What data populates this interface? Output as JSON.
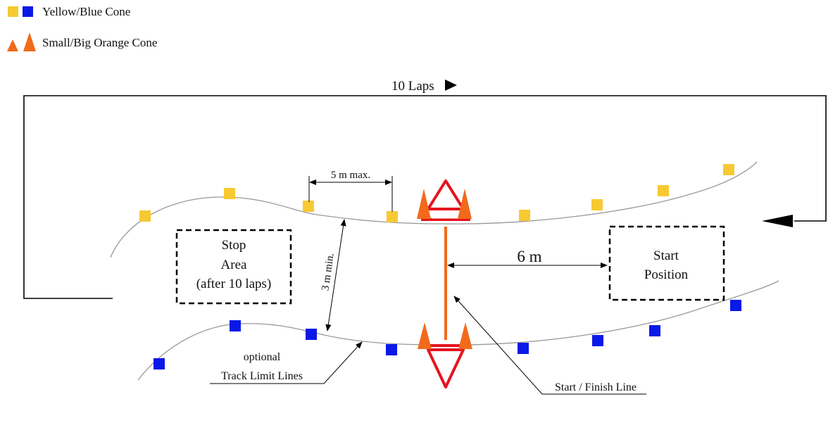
{
  "legend": {
    "yellow_blue": "Yellow/Blue Cone",
    "small_big_orange": "Small/Big Orange Cone"
  },
  "laps_label": "10 Laps",
  "dim_5m": "5 m max.",
  "dim_3m": "3 m min.",
  "dim_6m": "6 m",
  "stop_area": [
    "Stop",
    "Area",
    "(after 10 laps)"
  ],
  "start_position": [
    "Start",
    "Position"
  ],
  "track_limit": [
    "optional",
    "Track Limit Lines"
  ],
  "start_finish": "Start / Finish Line",
  "colors": {
    "yellow_cone": "#f7c933",
    "blue_cone": "#0a18e8",
    "orange_cone": "#f26a1b",
    "red": "#e4141e",
    "track_line": "#999999",
    "black": "#000000"
  }
}
